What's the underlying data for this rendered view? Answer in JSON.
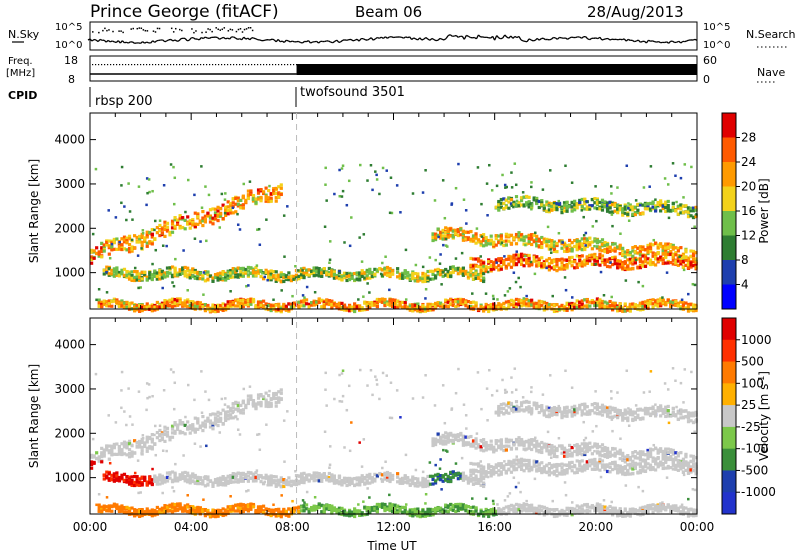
{
  "header": {
    "title": "Prince George (fitACF)",
    "beam": "Beam 06",
    "date": "28/Aug/2013"
  },
  "top_panels": {
    "nsky_label": "N.Sky",
    "nsky_ticks": [
      "10^5",
      "10^0"
    ],
    "nsearch_label": "N.Search",
    "nsearch_ticks": [
      "10^5",
      "10^0"
    ],
    "freq_label": "Freq.",
    "freq_unit": "[MHz]",
    "freq_ticks": [
      "18",
      "8"
    ],
    "nave_label": "Nave",
    "nave_ticks": [
      "60",
      "0"
    ],
    "cpid_label": "CPID",
    "cpid_entries": [
      "rbsp 200",
      "twofsound 3501"
    ],
    "cpid_switch_time": "08:10"
  },
  "chart_data": [
    {
      "type": "heatmap",
      "title": "Power",
      "ylabel": "Slant Range [km]",
      "xlabel": "",
      "y_ticks": [
        1000,
        2000,
        3000,
        4000
      ],
      "ylim": [
        180,
        4600
      ],
      "x_range_hours": [
        0,
        24
      ],
      "colorbar_label": "Power [dB]",
      "colorbar_ticks": [
        "28",
        "24",
        "20",
        "16",
        "12",
        "8",
        "4"
      ],
      "colors": [
        "#0000ff",
        "#1e3fae",
        "#2e7d32",
        "#6fbf4a",
        "#f3d21b",
        "#ff9a00",
        "#ff5a00",
        "#e00000"
      ],
      "bands": [
        {
          "name": "near-range E-region echoes",
          "t_start": 0.3,
          "t_end": 24,
          "r0": 300,
          "r1": 300,
          "width": 80,
          "level": 20
        },
        {
          "name": "1000 km band",
          "t_start": 0.5,
          "t_end": 15.5,
          "r0": 1000,
          "r1": 1000,
          "width": 100,
          "level": 14
        },
        {
          "name": "rising band",
          "t_start": 0.0,
          "t_end": 7.5,
          "r0": 1400,
          "r1": 2900,
          "width": 160,
          "level": 20
        },
        {
          "name": "dawn ionospheric band",
          "t_start": 13.5,
          "t_end": 24,
          "r0": 1900,
          "r1": 1450,
          "width": 120,
          "level": 18
        },
        {
          "name": "late band",
          "t_start": 15.0,
          "t_end": 24,
          "r0": 1250,
          "r1": 1300,
          "width": 120,
          "level": 22
        },
        {
          "name": "upper band",
          "t_start": 16.0,
          "t_end": 24,
          "r0": 2600,
          "r1": 2450,
          "width": 110,
          "level": 12
        }
      ]
    },
    {
      "type": "heatmap",
      "title": "Velocity",
      "ylabel": "Slant Range [km]",
      "xlabel": "Time UT",
      "x_ticks": [
        "00:00",
        "04:00",
        "08:00",
        "12:00",
        "16:00",
        "20:00",
        "00:00"
      ],
      "y_ticks": [
        1000,
        2000,
        3000,
        4000
      ],
      "ylim": [
        180,
        4600
      ],
      "colorbar_label": "Velocity [m s-1]",
      "colorbar_ticks": [
        "1000",
        "500",
        "100",
        "25",
        "-25",
        "-100",
        "-500",
        "-1000"
      ],
      "colors": [
        "#2233cc",
        "#1e3fae",
        "#3a8f3a",
        "#7cc84a",
        "#c8c8c8",
        "#ffb000",
        "#ff7a00",
        "#ff3000",
        "#e00000"
      ]
    }
  ]
}
